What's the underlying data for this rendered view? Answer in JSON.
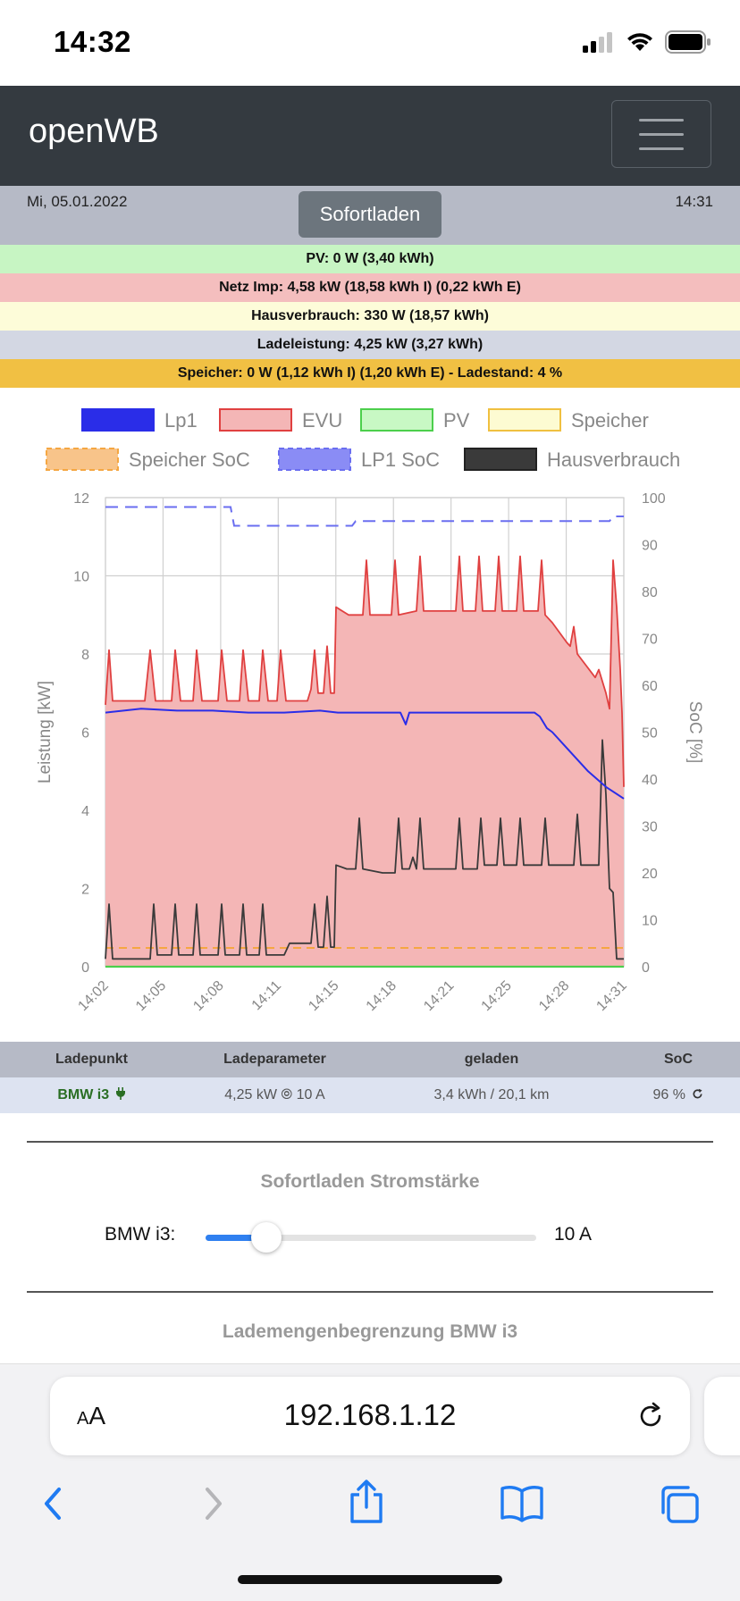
{
  "status": {
    "time": "14:32"
  },
  "navbar": {
    "brand": "openWB"
  },
  "info": {
    "date": "Mi, 05.01.2022",
    "mode_button": "Sofortladen",
    "clock": "14:31"
  },
  "summary": {
    "pv": "PV: 0 W (3,40 kWh)",
    "evu": "Netz Imp: 4,58 kW (18,58 kWh I) (0,22 kWh E)",
    "haus": "Hausverbrauch: 330 W (18,57 kWh)",
    "lade": "Ladeleistung: 4,25 kW (3,27 kWh)",
    "speicher": "Speicher: 0 W (1,12 kWh I) (1,20 kWh E) - Ladestand: 4 %"
  },
  "colors": {
    "lp1": "#2a2de8",
    "evu_line": "#e04040",
    "evu_fill": "#f4b6b6",
    "pv": "#4ccf4c",
    "speicher_soc": "#f5a742",
    "lp1_soc": "#6a6ef0",
    "haus": "#3a3a3a"
  },
  "chart_data": {
    "type": "line",
    "legend": [
      "Lp1",
      "EVU",
      "PV",
      "Speicher",
      "Speicher SoC",
      "LP1 SoC",
      "Hausverbrauch"
    ],
    "ylabel": "Leistung [kW]",
    "y2label": "SoC [%]",
    "ylim": [
      0,
      12
    ],
    "y2lim": [
      0,
      100
    ],
    "yticks": [
      "0",
      "2",
      "4",
      "6",
      "8",
      "10",
      "12"
    ],
    "y2ticks": [
      "0",
      "10",
      "20",
      "30",
      "40",
      "50",
      "60",
      "70",
      "80",
      "90",
      "100"
    ],
    "xticks": [
      "14:02",
      "14:05",
      "14:08",
      "14:11",
      "14:15",
      "14:18",
      "14:21",
      "14:25",
      "14:28",
      "14:31"
    ],
    "x_range": [
      0,
      29
    ],
    "series": [
      {
        "name": "EVU",
        "axis": "left",
        "points": [
          [
            0,
            6.7
          ],
          [
            0.2,
            8.1
          ],
          [
            0.4,
            6.8
          ],
          [
            2.2,
            6.8
          ],
          [
            2.5,
            8.1
          ],
          [
            2.8,
            6.8
          ],
          [
            3.7,
            6.8
          ],
          [
            3.9,
            8.1
          ],
          [
            4.2,
            6.8
          ],
          [
            4.9,
            6.8
          ],
          [
            5.1,
            8.1
          ],
          [
            5.4,
            6.8
          ],
          [
            6.3,
            6.8
          ],
          [
            6.5,
            8.1
          ],
          [
            6.8,
            6.8
          ],
          [
            7.5,
            6.8
          ],
          [
            7.7,
            8.1
          ],
          [
            8.0,
            6.8
          ],
          [
            8.6,
            6.8
          ],
          [
            8.8,
            8.1
          ],
          [
            9.1,
            6.8
          ],
          [
            9.6,
            6.8
          ],
          [
            9.8,
            8.1
          ],
          [
            10.1,
            6.8
          ],
          [
            11.1,
            6.8
          ],
          [
            11.3,
            6.8
          ],
          [
            11.5,
            7.1
          ],
          [
            11.7,
            8.1
          ],
          [
            11.9,
            7.0
          ],
          [
            12.2,
            7.0
          ],
          [
            12.4,
            8.2
          ],
          [
            12.6,
            7.0
          ],
          [
            12.8,
            7.0
          ],
          [
            12.9,
            9.2
          ],
          [
            13.6,
            9.0
          ],
          [
            14.4,
            9.0
          ],
          [
            14.6,
            10.4
          ],
          [
            14.8,
            9.0
          ],
          [
            16.0,
            9.0
          ],
          [
            16.2,
            10.4
          ],
          [
            16.4,
            9.0
          ],
          [
            17.4,
            9.1
          ],
          [
            17.6,
            10.5
          ],
          [
            17.8,
            9.1
          ],
          [
            19.6,
            9.1
          ],
          [
            19.8,
            10.5
          ],
          [
            20.0,
            9.1
          ],
          [
            20.7,
            9.1
          ],
          [
            20.9,
            10.5
          ],
          [
            21.1,
            9.1
          ],
          [
            21.8,
            9.1
          ],
          [
            22.0,
            10.5
          ],
          [
            22.2,
            9.1
          ],
          [
            23.0,
            9.1
          ],
          [
            23.2,
            10.5
          ],
          [
            23.4,
            9.1
          ],
          [
            24.2,
            9.1
          ],
          [
            24.4,
            10.4
          ],
          [
            24.6,
            9.0
          ],
          [
            25.0,
            8.8
          ],
          [
            25.8,
            8.3
          ],
          [
            26.0,
            8.2
          ],
          [
            26.2,
            8.7
          ],
          [
            26.4,
            8.0
          ],
          [
            27.4,
            7.4
          ],
          [
            27.6,
            7.6
          ],
          [
            28.0,
            7.0
          ],
          [
            28.2,
            6.6
          ],
          [
            28.4,
            10.4
          ],
          [
            28.6,
            9.2
          ],
          [
            28.8,
            7.6
          ],
          [
            28.9,
            6.5
          ],
          [
            29,
            4.6
          ]
        ]
      },
      {
        "name": "Lp1",
        "axis": "left",
        "points": [
          [
            0,
            6.5
          ],
          [
            2,
            6.6
          ],
          [
            4,
            6.55
          ],
          [
            6,
            6.55
          ],
          [
            8,
            6.5
          ],
          [
            10,
            6.5
          ],
          [
            12,
            6.55
          ],
          [
            13,
            6.5
          ],
          [
            15,
            6.5
          ],
          [
            16,
            6.5
          ],
          [
            16.5,
            6.5
          ],
          [
            16.8,
            6.2
          ],
          [
            17.0,
            6.5
          ],
          [
            18,
            6.5
          ],
          [
            20,
            6.5
          ],
          [
            22,
            6.5
          ],
          [
            24,
            6.5
          ],
          [
            24.3,
            6.4
          ],
          [
            24.7,
            6.1
          ],
          [
            25,
            6.0
          ],
          [
            26,
            5.5
          ],
          [
            27,
            5.0
          ],
          [
            28,
            4.6
          ],
          [
            29,
            4.3
          ]
        ]
      },
      {
        "name": "Hausverbrauch",
        "axis": "left",
        "points": [
          [
            0,
            0.2
          ],
          [
            0.2,
            1.6
          ],
          [
            0.4,
            0.2
          ],
          [
            2.5,
            0.2
          ],
          [
            2.7,
            1.6
          ],
          [
            2.9,
            0.3
          ],
          [
            3.7,
            0.3
          ],
          [
            3.9,
            1.6
          ],
          [
            4.1,
            0.3
          ],
          [
            4.9,
            0.3
          ],
          [
            5.1,
            1.6
          ],
          [
            5.3,
            0.3
          ],
          [
            6.3,
            0.3
          ],
          [
            6.5,
            1.6
          ],
          [
            6.7,
            0.3
          ],
          [
            7.5,
            0.3
          ],
          [
            7.7,
            1.6
          ],
          [
            7.9,
            0.3
          ],
          [
            8.6,
            0.3
          ],
          [
            8.8,
            1.6
          ],
          [
            9.0,
            0.3
          ],
          [
            10.0,
            0.3
          ],
          [
            10.3,
            0.6
          ],
          [
            11.5,
            0.6
          ],
          [
            11.7,
            1.6
          ],
          [
            11.9,
            0.5
          ],
          [
            12.2,
            0.5
          ],
          [
            12.4,
            1.8
          ],
          [
            12.6,
            0.5
          ],
          [
            12.8,
            0.5
          ],
          [
            12.9,
            2.6
          ],
          [
            13.5,
            2.5
          ],
          [
            14.0,
            2.5
          ],
          [
            14.2,
            3.8
          ],
          [
            14.4,
            2.5
          ],
          [
            15.5,
            2.4
          ],
          [
            16.2,
            2.4
          ],
          [
            16.4,
            3.8
          ],
          [
            16.6,
            2.5
          ],
          [
            17.0,
            2.5
          ],
          [
            17.2,
            2.8
          ],
          [
            17.4,
            2.5
          ],
          [
            17.6,
            3.8
          ],
          [
            17.8,
            2.5
          ],
          [
            19.6,
            2.5
          ],
          [
            19.8,
            3.8
          ],
          [
            20.0,
            2.5
          ],
          [
            20.8,
            2.5
          ],
          [
            21.0,
            3.8
          ],
          [
            21.2,
            2.6
          ],
          [
            21.9,
            2.6
          ],
          [
            22.1,
            3.8
          ],
          [
            22.3,
            2.6
          ],
          [
            23.0,
            2.6
          ],
          [
            23.2,
            3.8
          ],
          [
            23.4,
            2.6
          ],
          [
            24.4,
            2.6
          ],
          [
            24.6,
            3.8
          ],
          [
            24.8,
            2.6
          ],
          [
            26.2,
            2.6
          ],
          [
            26.4,
            3.9
          ],
          [
            26.6,
            2.6
          ],
          [
            27.6,
            2.6
          ],
          [
            27.8,
            5.8
          ],
          [
            28.0,
            4.4
          ],
          [
            28.2,
            2.0
          ],
          [
            28.4,
            1.9
          ],
          [
            28.6,
            0.2
          ],
          [
            29,
            0.2
          ]
        ]
      },
      {
        "name": "PV",
        "axis": "left",
        "points": [
          [
            0,
            0
          ],
          [
            29,
            0
          ]
        ]
      },
      {
        "name": "LP1 SoC",
        "axis": "right",
        "points": [
          [
            0,
            98
          ],
          [
            7,
            98
          ],
          [
            7.2,
            94
          ],
          [
            13.8,
            94
          ],
          [
            14,
            95
          ],
          [
            28.2,
            95
          ],
          [
            28.4,
            96
          ],
          [
            29,
            96
          ]
        ]
      },
      {
        "name": "Speicher SoC",
        "axis": "right",
        "points": [
          [
            0,
            4
          ],
          [
            29,
            4
          ]
        ]
      }
    ]
  },
  "table": {
    "headers": [
      "Ladepunkt",
      "Ladeparameter",
      "geladen",
      "SoC"
    ],
    "row": {
      "name": "BMW i3",
      "params": "4,25 kW ⦾ 10 A",
      "charged": "3,4 kWh / 20,1 km",
      "soc": "96 %"
    }
  },
  "sofort": {
    "title": "Sofortladen Stromstärke",
    "label": "BMW i3:",
    "value": "10 A",
    "current_a": 10,
    "min_a": 6,
    "max_a": 32
  },
  "lademengen": {
    "title": "Lademengenbegrenzung BMW i3"
  },
  "safari": {
    "aa_large": "A",
    "aa_small": "A",
    "url": "192.168.1.12"
  }
}
